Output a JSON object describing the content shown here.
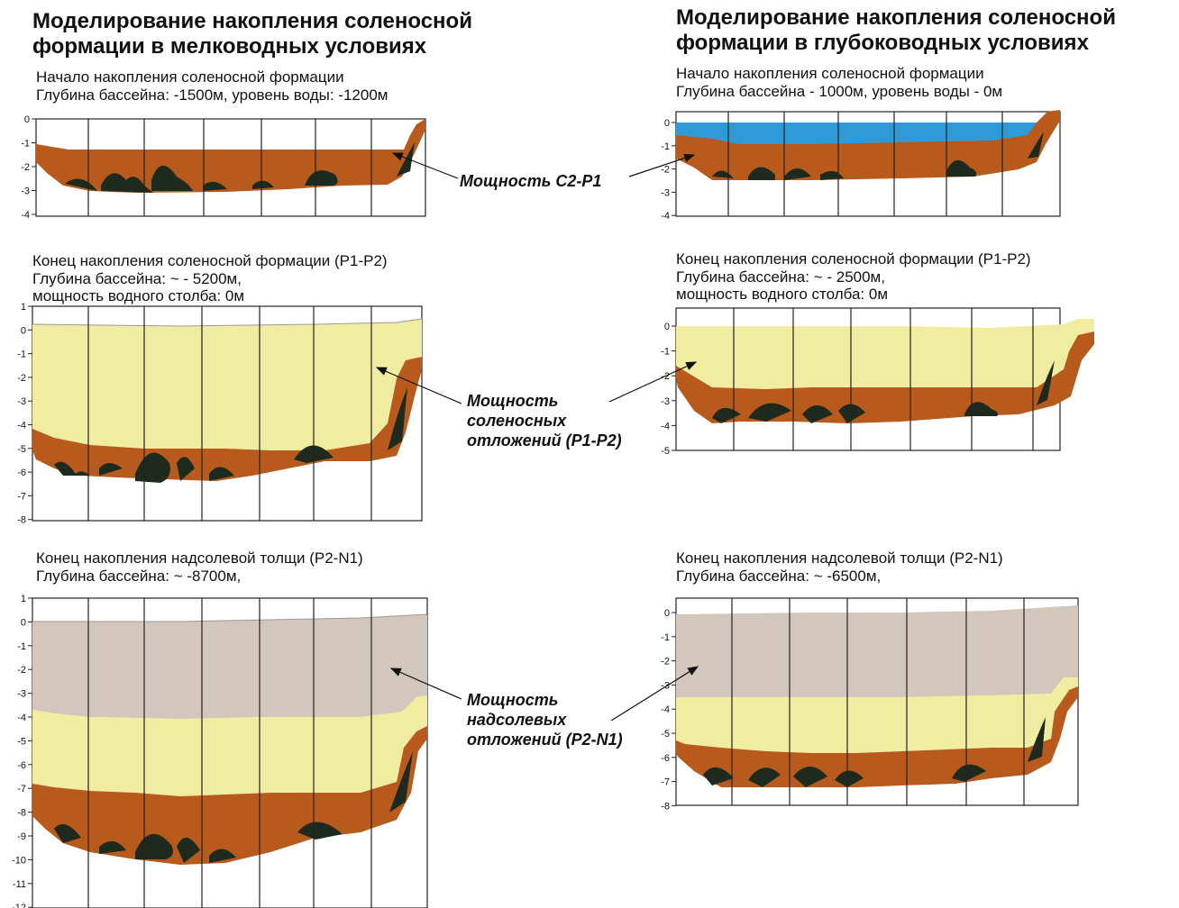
{
  "titles": {
    "left": "Моделирование накопления соленосной\nформации в мелководных условиях",
    "right": "Моделирование накопления соленосной\nформации в глубоководных условиях"
  },
  "captions": {
    "left_1": "Начало накопления соленосной формации\nГлубина бассейна:  -1500м, уровень воды: -1200м",
    "right_1": "Начало накопления соленосной формации\nГлубина бассейна - 1000м, уровень воды - 0м",
    "left_2": "Конец накопления соленосной формации (P1-P2)\nГлубина бассейна: ~ - 5200м,\nмощность водного столба: 0м",
    "right_2": "Конец накопления соленосной формации (P1-P2)\nГлубина бассейна: ~ - 2500м,\nмощность водного столба: 0м",
    "left_3": "Конец накопления надсолевой толщи (P2-N1)\nГлубина бассейна: ~ -8700м,",
    "right_3": "Конец накопления надсолевой толщи (P2-N1)\nГлубина бассейна: ~ -6500м,"
  },
  "annotations": {
    "c2p1": "Мощность С2-Р1",
    "salt": "Мощность\nсоленосных\nотложений (Р1-Р2)",
    "supra": "Мощность\nнадсолевых\nотложений (Р2-N1)"
  },
  "colors": {
    "water": "#2f9ad8",
    "basement": "#b85a1b",
    "dark_bodies": "#1e2a1e",
    "salt": "#f0eca0",
    "supra_salt": "#d3c6bd",
    "grid": "#222222"
  },
  "panels": [
    {
      "id": "left-1",
      "ticks": [
        "0",
        "-1",
        "-2",
        "-3",
        "-4"
      ],
      "layers": [
        "water",
        "basement"
      ]
    },
    {
      "id": "right-1",
      "ticks": [
        "0",
        "-1",
        "-2",
        "-3",
        "-4"
      ],
      "layers": [
        "water",
        "basement"
      ]
    },
    {
      "id": "left-2",
      "ticks": [
        "1",
        "0",
        "-1",
        "-2",
        "-3",
        "-4",
        "-5",
        "-6",
        "-7",
        "-8"
      ],
      "layers": [
        "salt",
        "basement"
      ]
    },
    {
      "id": "right-2",
      "ticks": [
        "0",
        "-1",
        "-2",
        "-3",
        "-4",
        "-5"
      ],
      "layers": [
        "salt",
        "basement"
      ]
    },
    {
      "id": "left-3",
      "ticks": [
        "1",
        "0",
        "-1",
        "-2",
        "-3",
        "-4",
        "-5",
        "-6",
        "-7",
        "-8",
        "-9",
        "-10",
        "-11",
        "-12"
      ],
      "layers": [
        "supra_salt",
        "salt",
        "basement"
      ]
    },
    {
      "id": "right-3",
      "ticks": [
        "0",
        "-1",
        "-2",
        "-3",
        "-4",
        "-5",
        "-6",
        "-7",
        "-8"
      ],
      "layers": [
        "supra_salt",
        "salt",
        "basement"
      ]
    }
  ]
}
